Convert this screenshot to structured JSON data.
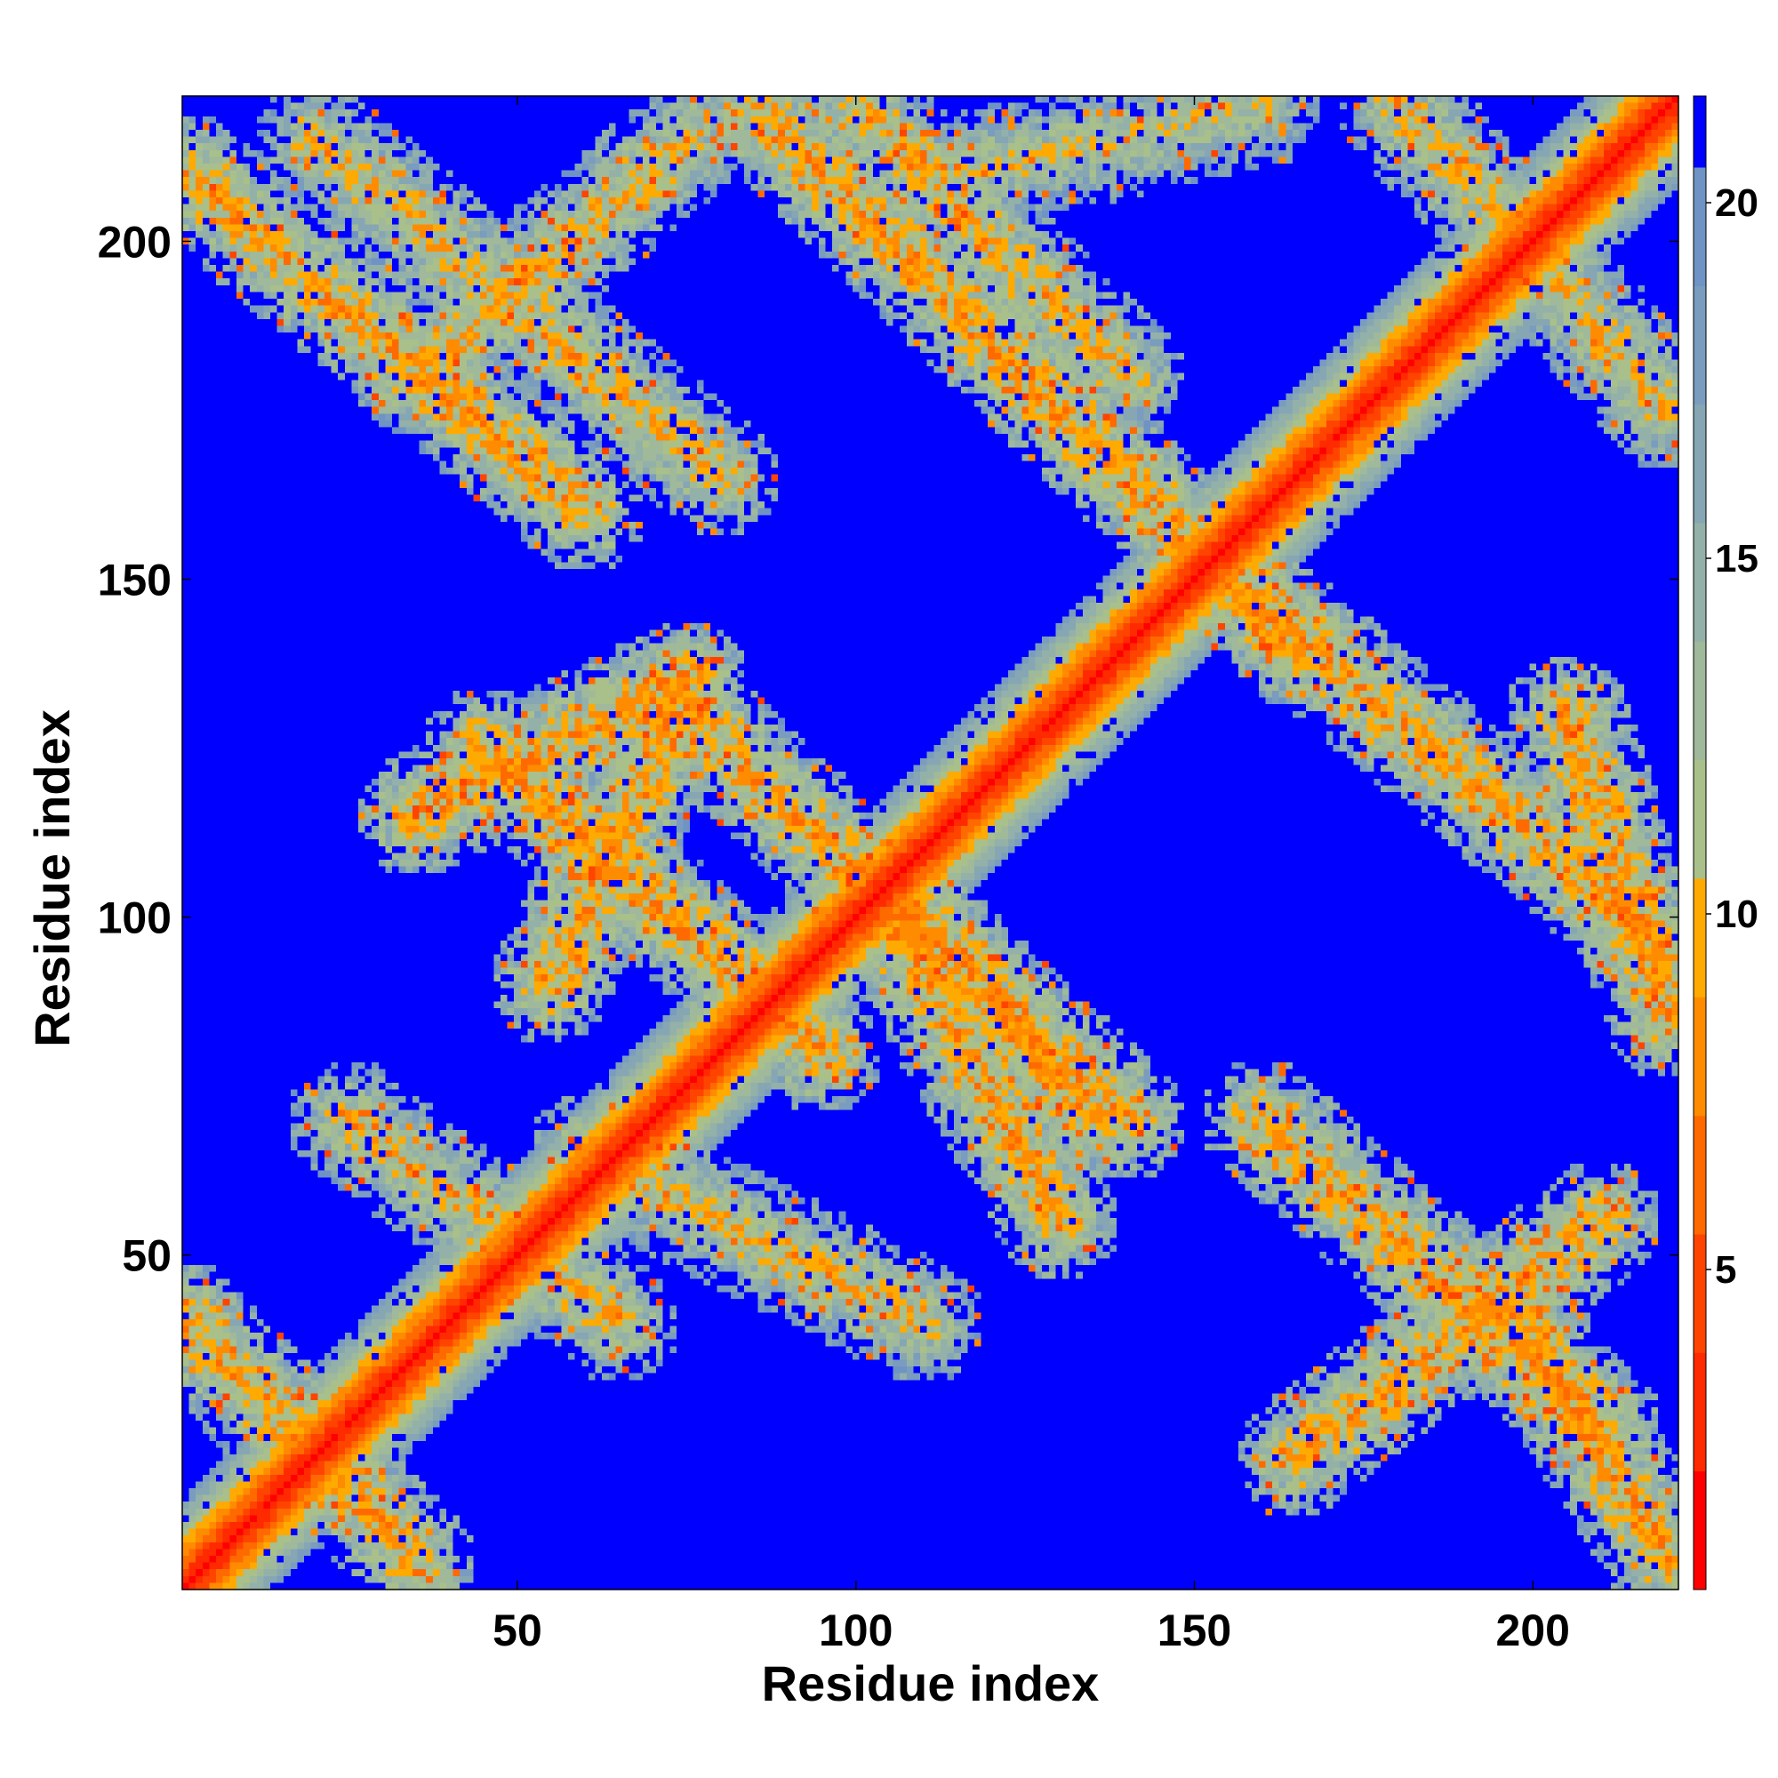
{
  "chart_data": {
    "type": "heatmap",
    "title": "",
    "xlabel": "Residue index",
    "ylabel": "Residue index",
    "xlim": [
      1,
      221
    ],
    "ylim": [
      1,
      221
    ],
    "xticks": [
      50,
      100,
      150,
      200
    ],
    "yticks": [
      50,
      100,
      150,
      200
    ],
    "colorbar": {
      "ticks": [
        5,
        10,
        15,
        20
      ],
      "range": [
        0.5,
        21.5
      ],
      "colors": [
        "#ff0000",
        "#ff2a00",
        "#ff4400",
        "#ff6a00",
        "#ff8c00",
        "#ffaa00",
        "#a9c08a",
        "#9fb99a",
        "#93b1a8",
        "#86a6b4",
        "#7a9cbe",
        "#6f93c4",
        "#0000ff"
      ]
    },
    "structure": {
      "diagonal": "distance increases away from the main diagonal (red to green)",
      "bands": [
        {
          "x0": 1,
          "y0": 210,
          "x1": 60,
          "y1": 160,
          "value": 12
        },
        {
          "x0": 20,
          "y0": 215,
          "x1": 80,
          "y1": 165,
          "value": 13
        },
        {
          "x0": 35,
          "y0": 180,
          "x1": 75,
          "y1": 215,
          "value": 13
        },
        {
          "x0": 85,
          "y0": 220,
          "x1": 165,
          "y1": 140,
          "value": 12
        },
        {
          "x0": 100,
          "y0": 220,
          "x1": 140,
          "y1": 180,
          "value": 13
        },
        {
          "x0": 115,
          "y0": 210,
          "x1": 160,
          "y1": 220,
          "value": 14
        },
        {
          "x0": 155,
          "y0": 150,
          "x1": 220,
          "y1": 95,
          "value": 12
        },
        {
          "x0": 180,
          "y0": 220,
          "x1": 220,
          "y1": 175,
          "value": 13
        },
        {
          "x0": 35,
          "y0": 115,
          "x1": 75,
          "y1": 135,
          "value": 12
        },
        {
          "x0": 55,
          "y0": 90,
          "x1": 75,
          "y1": 135,
          "value": 12
        },
        {
          "x0": 45,
          "y0": 125,
          "x1": 95,
          "y1": 80,
          "value": 12
        },
        {
          "x0": 75,
          "y0": 130,
          "x1": 140,
          "y1": 70,
          "value": 12
        },
        {
          "x0": 105,
          "y0": 105,
          "x1": 135,
          "y1": 70,
          "value": 12
        },
        {
          "x0": 105,
          "y0": 100,
          "x1": 130,
          "y1": 55,
          "value": 12
        },
        {
          "x0": 60,
          "y0": 65,
          "x1": 110,
          "y1": 40,
          "value": 13
        },
        {
          "x0": 25,
          "y0": 70,
          "x1": 65,
          "y1": 40,
          "value": 13
        },
        {
          "x0": 1,
          "y0": 40,
          "x1": 35,
          "y1": 5,
          "value": 12
        },
        {
          "x0": 160,
          "y0": 70,
          "x1": 210,
          "y1": 25,
          "value": 12
        },
        {
          "x0": 165,
          "y0": 20,
          "x1": 210,
          "y1": 55,
          "value": 12
        },
        {
          "x0": 195,
          "y0": 45,
          "x1": 220,
          "y1": 5,
          "value": 12
        },
        {
          "x0": 205,
          "y0": 130,
          "x1": 220,
          "y1": 85,
          "value": 12
        }
      ]
    }
  }
}
